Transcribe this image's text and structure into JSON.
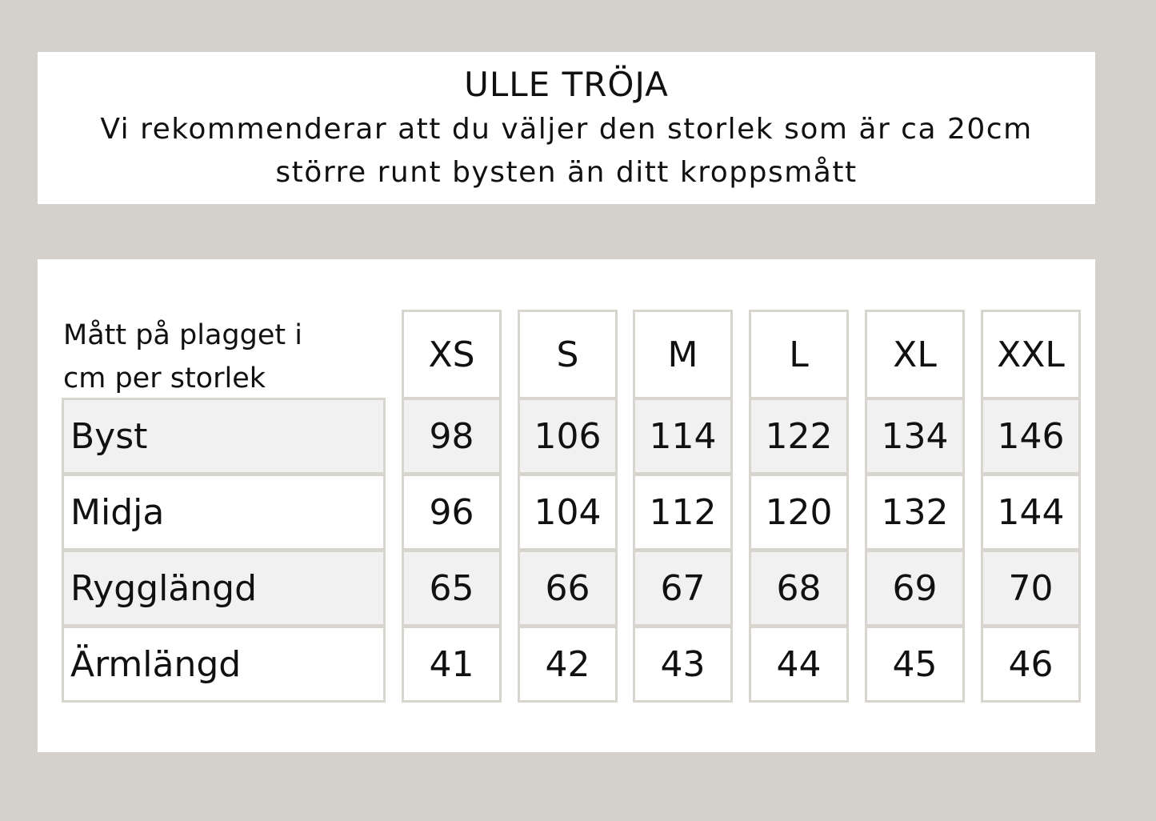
{
  "header": {
    "title": "ULLE TRÖJA",
    "subtitle_line1": "Vi rekommenderar att du väljer den storlek som är ca 20cm",
    "subtitle_line2": "större runt bysten än ditt kroppsmått"
  },
  "table": {
    "corner_label_line1": "Mått på plagget i",
    "corner_label_line2": "cm per storlek",
    "sizes": [
      "XS",
      "S",
      "M",
      "L",
      "XL",
      "XXL"
    ],
    "rows": [
      {
        "label": "Byst",
        "values": [
          "98",
          "106",
          "114",
          "122",
          "134",
          "146"
        ]
      },
      {
        "label": "Midja",
        "values": [
          "96",
          "104",
          "112",
          "120",
          "132",
          "144"
        ]
      },
      {
        "label": "Rygglängd",
        "values": [
          "65",
          "66",
          "67",
          "68",
          "69",
          "70"
        ]
      },
      {
        "label": "Ärmlängd",
        "values": [
          "41",
          "42",
          "43",
          "44",
          "45",
          "46"
        ]
      }
    ]
  },
  "colors": {
    "background": "#d4d1ca",
    "border": "#d8d5cf",
    "shaded_row": "#f1f1f1"
  }
}
